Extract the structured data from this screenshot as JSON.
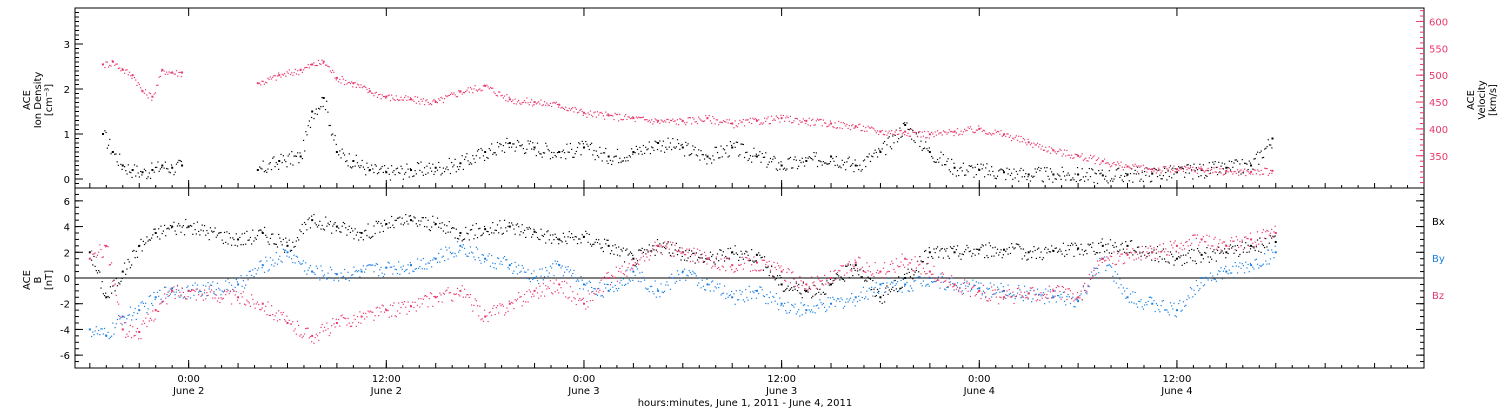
{
  "chart_data": [
    {
      "type": "scatter",
      "panel": "top",
      "left_axis": {
        "label_line1": "ACE",
        "label_line2": "Ion Density",
        "unit": "[cm⁻³]",
        "ylim": [
          -0.2,
          3.8
        ],
        "ticks": [
          "0",
          "1",
          "2",
          "3"
        ]
      },
      "right_axis": {
        "label_line1": "ACE",
        "label_line2": "Velocity",
        "unit": "[km/s]",
        "ylim": [
          290,
          625
        ],
        "ticks": [
          "350",
          "400",
          "450",
          "500",
          "550",
          "600"
        ]
      },
      "series": [
        {
          "axis": "left",
          "color": "#000000",
          "x": [
            -5.2,
            -4.6,
            -4.0,
            -3.4,
            -2.8,
            -2.2,
            -1.6,
            -1.0,
            -0.4,
            4.2,
            5.5,
            6.8,
            7.5,
            8.2,
            9.0,
            10.0,
            11.0,
            12.0,
            13.5,
            15.0,
            16.5,
            18.0,
            19.5,
            21.0,
            22.5,
            24.0,
            25.5,
            27.0,
            28.5,
            30.0,
            31.5,
            33.0,
            34.5,
            36.0,
            37.5,
            39.0,
            40.5,
            42.0,
            43.5,
            45.0,
            46.5,
            48.0,
            49.5,
            51.0,
            52.5,
            54.0,
            55.5,
            57.0,
            58.5,
            60.0,
            61.5,
            63.0,
            64.5,
            65.8
          ],
          "y": [
            1.0,
            0.6,
            0.3,
            0.2,
            0.15,
            0.2,
            0.3,
            0.25,
            0.3,
            0.2,
            0.4,
            0.5,
            1.5,
            1.8,
            0.6,
            0.4,
            0.2,
            0.15,
            0.2,
            0.25,
            0.35,
            0.6,
            0.8,
            0.7,
            0.6,
            0.7,
            0.5,
            0.6,
            0.8,
            0.7,
            0.5,
            0.7,
            0.5,
            0.3,
            0.4,
            0.5,
            0.3,
            0.6,
            1.2,
            0.6,
            0.25,
            0.2,
            0.15,
            0.1,
            0.1,
            0.1,
            0.08,
            0.1,
            0.12,
            0.15,
            0.2,
            0.25,
            0.3,
            0.9
          ]
        },
        {
          "axis": "right",
          "color": "#e8386a",
          "x": [
            -5.2,
            -4.6,
            -4.0,
            -3.4,
            -2.8,
            -2.2,
            -1.6,
            -1.0,
            -0.4,
            4.2,
            5.5,
            6.8,
            7.5,
            8.2,
            9.0,
            10.0,
            11.0,
            12.0,
            13.5,
            15.0,
            16.5,
            18.0,
            19.5,
            21.0,
            22.5,
            24.0,
            25.5,
            27.0,
            28.5,
            30.0,
            31.5,
            33.0,
            34.5,
            36.0,
            37.5,
            39.0,
            40.5,
            42.0,
            43.5,
            45.0,
            46.5,
            48.0,
            49.5,
            51.0,
            52.5,
            54.0,
            55.5,
            57.0,
            58.5,
            60.0,
            61.5,
            63.0,
            64.5,
            65.8
          ],
          "y": [
            520,
            525,
            510,
            500,
            470,
            460,
            510,
            505,
            505,
            485,
            500,
            510,
            520,
            525,
            495,
            485,
            470,
            460,
            455,
            450,
            470,
            480,
            455,
            450,
            445,
            430,
            425,
            420,
            415,
            415,
            420,
            410,
            415,
            420,
            415,
            410,
            405,
            395,
            395,
            390,
            395,
            400,
            390,
            375,
            360,
            350,
            340,
            330,
            325,
            325,
            325,
            322,
            320,
            322
          ]
        }
      ]
    },
    {
      "type": "scatter",
      "panel": "bottom",
      "left_axis": {
        "label_line1": "ACE",
        "label_line2": "B",
        "unit": "[nT]",
        "ylim": [
          -7,
          7
        ],
        "ticks": [
          "6",
          "4",
          "2",
          "0",
          "-2",
          "-4",
          "-6"
        ]
      },
      "legend": [
        "Bx",
        "By",
        "Bz"
      ],
      "series": [
        {
          "name": "Bx",
          "color": "#000000",
          "x": [
            -6.0,
            -5.0,
            -4.0,
            -3.0,
            -2.0,
            -1.0,
            0.0,
            3.0,
            4.5,
            6.0,
            7.5,
            9.0,
            10.5,
            12.0,
            13.5,
            15.0,
            16.5,
            18.0,
            19.5,
            21.0,
            22.5,
            24.0,
            25.5,
            27.0,
            28.5,
            30.0,
            31.5,
            33.0,
            34.5,
            36.0,
            37.5,
            39.0,
            40.5,
            42.0,
            43.5,
            45.0,
            46.5,
            48.0,
            49.5,
            51.0,
            52.5,
            54.0,
            55.5,
            57.0,
            58.5,
            60.0,
            61.5,
            63.0,
            64.5,
            66.0
          ],
          "y": [
            2.0,
            -1.5,
            0.5,
            2.5,
            3.5,
            4.0,
            4.0,
            3.0,
            3.5,
            2.5,
            4.5,
            4.0,
            3.5,
            4.2,
            4.5,
            4.2,
            3.5,
            3.8,
            4.0,
            3.6,
            3.0,
            3.2,
            2.5,
            1.5,
            2.5,
            2.0,
            1.5,
            2.0,
            1.8,
            -0.5,
            -1.0,
            -0.5,
            1.0,
            -1.5,
            0.0,
            2.0,
            2.0,
            2.2,
            2.2,
            2.0,
            2.1,
            2.3,
            2.5,
            2.5,
            2.0,
            1.5,
            1.8,
            2.0,
            2.5,
            2.8
          ]
        },
        {
          "name": "By",
          "color": "#1b7fe0",
          "x": [
            -6.0,
            -5.0,
            -4.0,
            -3.0,
            -2.0,
            -1.0,
            0.0,
            3.0,
            4.5,
            6.0,
            7.5,
            9.0,
            10.5,
            12.0,
            13.5,
            15.0,
            16.5,
            18.0,
            19.5,
            21.0,
            22.5,
            24.0,
            25.5,
            27.0,
            28.5,
            30.0,
            31.5,
            33.0,
            34.5,
            36.0,
            37.5,
            39.0,
            40.5,
            42.0,
            43.5,
            45.0,
            46.5,
            48.0,
            49.5,
            51.0,
            52.5,
            54.0,
            55.5,
            57.0,
            58.5,
            60.0,
            61.5,
            63.0,
            64.5,
            66.0
          ],
          "y": [
            -4.0,
            -4.5,
            -3.0,
            -2.5,
            -1.5,
            -0.8,
            -1.0,
            -0.5,
            1.0,
            2.0,
            0.5,
            0.3,
            0.5,
            0.8,
            1.0,
            1.5,
            2.5,
            1.5,
            1.0,
            0.0,
            1.0,
            -0.5,
            -1.0,
            0.5,
            -1.0,
            0.5,
            -0.5,
            -1.5,
            -1.0,
            -2.0,
            -2.5,
            -2.0,
            -1.5,
            -0.5,
            -0.5,
            0.0,
            -0.5,
            -0.8,
            -1.0,
            -1.2,
            -1.5,
            -1.8,
            1.5,
            -1.5,
            -2.0,
            -2.5,
            0.0,
            0.5,
            1.0,
            2.0
          ]
        },
        {
          "name": "Bz",
          "color": "#e8386a",
          "x": [
            -6.0,
            -5.0,
            -4.0,
            -3.0,
            -2.0,
            -1.0,
            0.0,
            3.0,
            4.5,
            6.0,
            7.5,
            9.0,
            10.5,
            12.0,
            13.5,
            15.0,
            16.5,
            18.0,
            19.5,
            21.0,
            22.5,
            24.0,
            25.5,
            27.0,
            28.5,
            30.0,
            31.5,
            33.0,
            34.5,
            36.0,
            37.5,
            39.0,
            40.5,
            42.0,
            43.5,
            45.0,
            46.5,
            48.0,
            49.5,
            51.0,
            52.5,
            54.0,
            55.5,
            57.0,
            58.5,
            60.0,
            61.5,
            63.0,
            64.5,
            66.0
          ],
          "y": [
            1.5,
            2.5,
            -4.0,
            -4.2,
            -2.5,
            -1.0,
            -1.0,
            -1.5,
            -2.0,
            -3.5,
            -4.5,
            -3.5,
            -3.0,
            -2.5,
            -2.2,
            -1.5,
            -1.0,
            -3.0,
            -2.0,
            -1.0,
            -0.5,
            -2.0,
            0.0,
            1.0,
            2.5,
            2.0,
            1.5,
            1.0,
            1.2,
            0.5,
            -0.5,
            0.0,
            1.2,
            0.5,
            1.5,
            0.5,
            -0.5,
            -1.0,
            -1.5,
            -1.2,
            -1.0,
            -1.5,
            1.5,
            1.8,
            2.0,
            2.5,
            3.0,
            2.5,
            3.0,
            3.5
          ]
        }
      ]
    }
  ],
  "x_axis": {
    "xlim": [
      -6.9,
      75.0
    ],
    "major_ticks": [
      0,
      12,
      24,
      36,
      48,
      60
    ],
    "tick_labels": [
      {
        "time": "0:00",
        "day": "June 2"
      },
      {
        "time": "12:00",
        "day": "June 2"
      },
      {
        "time": "0:00",
        "day": "June 3"
      },
      {
        "time": "12:00",
        "day": "June 3"
      },
      {
        "time": "0:00",
        "day": "June 4"
      },
      {
        "time": "12:00",
        "day": "June 4"
      }
    ],
    "title": "hours:minutes, June  1, 2011 - June  4, 2011"
  }
}
